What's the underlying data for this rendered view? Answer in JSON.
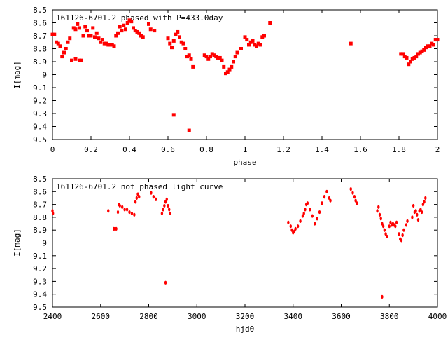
{
  "chart_data": [
    {
      "type": "scatter",
      "title": "161126-6701.2 phased with P=433.0day",
      "xlabel": "phase",
      "ylabel": "I[mag]",
      "xlim": [
        0,
        2
      ],
      "ylim": [
        8.5,
        9.5
      ],
      "y_inverted": true,
      "grid": false,
      "marker_color": "#ff0000",
      "xticks": [
        "0",
        "0.2",
        "0.4",
        "0.6",
        "0.8",
        "1",
        "1.2",
        "1.4",
        "1.6",
        "1.8",
        "2"
      ],
      "yticks": [
        "8.5",
        "8.6",
        "8.7",
        "8.8",
        "8.9",
        "9",
        "9.1",
        "9.2",
        "9.3",
        "9.4",
        "9.5"
      ],
      "series": [
        {
          "x": [
            0.0,
            0.01,
            0.02,
            0.03,
            0.04,
            0.05,
            0.06,
            0.07,
            0.08,
            0.09,
            0.1,
            0.11,
            0.12,
            0.12,
            0.13,
            0.14,
            0.14,
            0.15,
            0.16,
            0.17,
            0.18,
            0.19,
            0.2,
            0.21,
            0.22,
            0.23,
            0.24,
            0.25,
            0.26,
            0.27,
            0.28,
            0.29,
            0.3,
            0.31,
            0.32,
            0.33,
            0.34,
            0.35,
            0.36,
            0.37,
            0.38,
            0.39,
            0.4,
            0.41,
            0.42,
            0.43,
            0.44,
            0.45,
            0.46,
            0.47,
            0.5,
            0.51,
            0.53,
            0.6,
            0.61,
            0.62,
            0.63,
            0.64,
            0.65,
            0.66,
            0.67,
            0.68,
            0.69,
            0.7,
            0.71,
            0.72,
            0.73,
            0.63,
            0.71,
            0.79,
            0.8,
            0.81,
            0.82,
            0.83,
            0.84,
            0.85,
            0.86,
            0.87,
            0.88,
            0.89,
            0.9,
            0.91,
            0.92,
            0.93,
            0.94,
            0.95,
            0.96,
            0.98,
            1.0,
            1.01,
            1.02,
            1.03,
            1.04,
            1.05,
            1.06,
            1.07,
            1.08,
            1.09,
            1.1,
            1.13,
            1.55,
            1.81,
            1.82,
            1.83,
            1.84,
            1.85,
            1.86,
            1.87,
            1.88,
            1.89,
            1.9,
            1.91,
            1.92,
            1.93,
            1.94,
            1.95,
            1.96,
            1.97,
            1.98,
            1.99,
            2.0
          ],
          "y": [
            8.69,
            8.69,
            8.75,
            8.76,
            8.78,
            8.86,
            8.83,
            8.8,
            8.75,
            8.72,
            8.89,
            8.64,
            8.88,
            8.65,
            8.61,
            8.89,
            8.64,
            8.89,
            8.7,
            8.63,
            8.66,
            8.7,
            8.7,
            8.64,
            8.71,
            8.68,
            8.72,
            8.75,
            8.73,
            8.76,
            8.76,
            8.77,
            8.77,
            8.77,
            8.78,
            8.7,
            8.68,
            8.63,
            8.66,
            8.62,
            8.65,
            8.6,
            8.58,
            8.59,
            8.64,
            8.66,
            8.67,
            8.68,
            8.7,
            8.71,
            8.61,
            8.65,
            8.66,
            8.72,
            8.76,
            8.79,
            8.74,
            8.69,
            8.67,
            8.71,
            8.75,
            8.76,
            8.8,
            8.86,
            8.85,
            8.88,
            8.94,
            9.31,
            9.43,
            8.85,
            8.86,
            8.88,
            8.86,
            8.84,
            8.85,
            8.86,
            8.87,
            8.87,
            8.89,
            8.94,
            8.99,
            8.98,
            8.96,
            8.94,
            8.9,
            8.86,
            8.83,
            8.8,
            8.71,
            8.73,
            8.77,
            8.75,
            8.74,
            8.77,
            8.78,
            8.76,
            8.77,
            8.71,
            8.7,
            8.6,
            8.76,
            8.84,
            8.84,
            8.86,
            8.87,
            8.92,
            8.9,
            8.88,
            8.87,
            8.86,
            8.84,
            8.83,
            8.82,
            8.81,
            8.79,
            8.78,
            8.78,
            8.76,
            8.77,
            8.73,
            8.73
          ]
        }
      ]
    },
    {
      "type": "scatter",
      "title": "161126-6701.2 not phased light curve",
      "xlabel": "hjd0",
      "ylabel": "I[mag]",
      "xlim": [
        2400,
        4000
      ],
      "ylim": [
        8.5,
        9.5
      ],
      "y_inverted": true,
      "grid": false,
      "marker_color": "#ff0000",
      "xticks": [
        "2400",
        "2600",
        "2800",
        "3000",
        "3200",
        "3400",
        "3600",
        "3800",
        "4000"
      ],
      "yticks": [
        "8.5",
        "8.6",
        "8.7",
        "8.8",
        "8.9",
        "9",
        "9.1",
        "9.2",
        "9.3",
        "9.4",
        "9.5"
      ],
      "series": [
        {
          "x": [
            2400,
            2402,
            2632,
            2655,
            2660,
            2665,
            2672,
            2676,
            2680,
            2690,
            2700,
            2710,
            2720,
            2730,
            2740,
            2745,
            2750,
            2755,
            2760,
            2810,
            2820,
            2830,
            2855,
            2860,
            2865,
            2870,
            2875,
            2880,
            2885,
            2888,
            2870,
            3380,
            3390,
            3395,
            3400,
            3405,
            3410,
            3420,
            3430,
            3440,
            3445,
            3450,
            3455,
            3460,
            3470,
            3480,
            3490,
            3500,
            3510,
            3520,
            3530,
            3540,
            3550,
            3555,
            3640,
            3648,
            3655,
            3660,
            3665,
            3750,
            3755,
            3760,
            3765,
            3770,
            3775,
            3780,
            3785,
            3790,
            3800,
            3805,
            3810,
            3815,
            3820,
            3825,
            3830,
            3840,
            3845,
            3850,
            3855,
            3860,
            3870,
            3875,
            3770,
            3895,
            3900,
            3905,
            3910,
            3915,
            3920,
            3925,
            3930,
            3935,
            3940,
            3945,
            3950
          ],
          "y": [
            8.75,
            8.77,
            8.75,
            8.89,
            8.89,
            8.89,
            8.76,
            8.7,
            8.71,
            8.72,
            8.74,
            8.74,
            8.76,
            8.77,
            8.78,
            8.68,
            8.65,
            8.62,
            8.64,
            8.61,
            8.64,
            8.66,
            8.77,
            8.74,
            8.71,
            8.68,
            8.66,
            8.71,
            8.74,
            8.77,
            9.31,
            8.84,
            8.87,
            8.9,
            8.92,
            8.91,
            8.89,
            8.87,
            8.83,
            8.79,
            8.77,
            8.74,
            8.7,
            8.69,
            8.74,
            8.79,
            8.85,
            8.81,
            8.76,
            8.69,
            8.64,
            8.6,
            8.65,
            8.67,
            8.58,
            8.61,
            8.64,
            8.67,
            8.69,
            8.75,
            8.72,
            8.78,
            8.81,
            8.85,
            8.87,
            8.9,
            8.93,
            8.95,
            8.87,
            8.84,
            8.86,
            8.85,
            8.86,
            8.87,
            8.84,
            8.93,
            8.97,
            8.98,
            8.94,
            8.9,
            8.86,
            8.83,
            9.42,
            8.8,
            8.71,
            8.76,
            8.75,
            8.78,
            8.82,
            8.75,
            8.74,
            8.76,
            8.7,
            8.68,
            8.65
          ]
        }
      ]
    }
  ]
}
